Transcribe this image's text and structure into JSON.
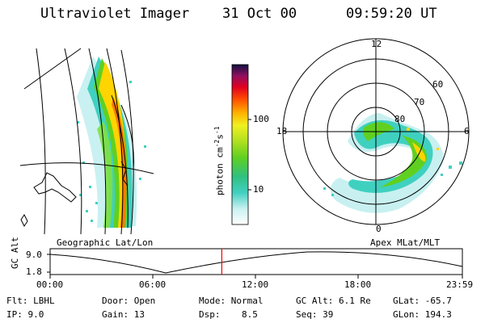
{
  "header": {
    "instrument": "Ultraviolet Imager",
    "date": "31 Oct 00",
    "time": "09:59:20 UT"
  },
  "colorbar": {
    "label": "photon cm",
    "label_sup1": "-2",
    "label_mid": "s",
    "label_sup2": "-1",
    "tick_high": "100",
    "tick_low": "10"
  },
  "left_panel": {
    "caption": "Geographic Lat/Lon"
  },
  "right_panel": {
    "caption": "Apex MLat/MLT",
    "mlt_labels": {
      "top": "12",
      "left": "18",
      "right": "6",
      "bottom": "0"
    },
    "lat_labels": [
      "60",
      "70",
      "80"
    ]
  },
  "timeline": {
    "ylabel": "GC Alt",
    "yticks": [
      "9.0",
      "1.8"
    ],
    "xticks": [
      "00:00",
      "06:00",
      "12:00",
      "18:00",
      "23:59"
    ],
    "current_time_hours": 9.989,
    "marker_color": "#ff0000"
  },
  "status": {
    "flt_label": "Flt:",
    "flt_value": "LBHL",
    "ip_label": "IP:",
    "ip_value": "9.0",
    "door_label": "Door:",
    "door_value": "Open",
    "gain_label": "Gain:",
    "gain_value": "13",
    "mode_label": "Mode:",
    "mode_value": "Normal",
    "dsp_label": "Dsp:",
    "dsp_value": "8.5",
    "gcalt_label": "GC Alt:",
    "gcalt_value": "6.1 Re",
    "seq_label": "Seq:",
    "seq_value": "39",
    "glat_label": "GLat:",
    "glat_value": "-65.7",
    "glon_label": "GLon:",
    "glon_value": "194.3"
  },
  "colors": {
    "accent": "#ff0000",
    "aurora_low": "#4fd6c8",
    "aurora_mid": "#7fe02a",
    "aurora_high": "#ffd400",
    "aurora_peak": "#ff7a00"
  }
}
